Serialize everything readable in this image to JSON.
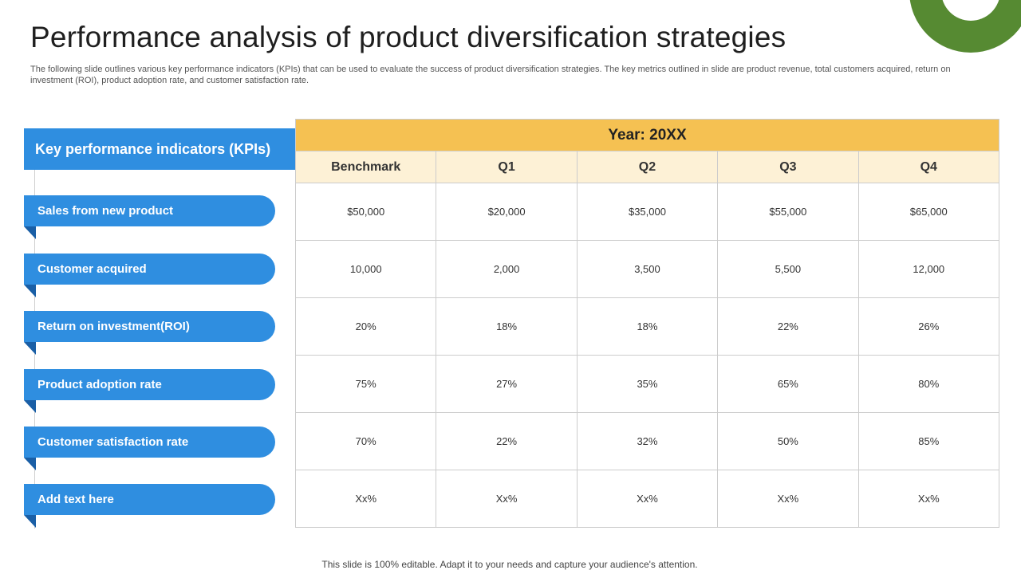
{
  "title": "Performance analysis of product diversification strategies",
  "subtitle": "The following slide outlines various key performance indicators (KPIs) that can be used to evaluate the success of product diversification strategies. The key metrics outlined in slide are product revenue, total customers acquired, return on investment (ROI), product adoption rate, and customer satisfaction rate.",
  "kpi_header": "Key performance indicators (KPIs)",
  "kpis": [
    "Sales from new product",
    "Customer acquired",
    "Return on investment(ROI)",
    "Product adoption rate",
    "Customer satisfaction rate",
    "Add text here"
  ],
  "table": {
    "year_label": "Year: 20XX",
    "columns": [
      "Benchmark",
      "Q1",
      "Q2",
      "Q3",
      "Q4"
    ],
    "rows": [
      [
        "$50,000",
        "$20,000",
        "$35,000",
        "$55,000",
        "$65,000"
      ],
      [
        "10,000",
        "2,000",
        "3,500",
        "5,500",
        "12,000"
      ],
      [
        "20%",
        "18%",
        "18%",
        "22%",
        "26%"
      ],
      [
        "75%",
        "27%",
        "35%",
        "65%",
        "80%"
      ],
      [
        "70%",
        "22%",
        "32%",
        "50%",
        "85%"
      ],
      [
        "Xx%",
        "Xx%",
        "Xx%",
        "Xx%",
        "Xx%"
      ]
    ]
  },
  "footer": "This slide is 100% editable. Adapt it to your needs and capture your audience's attention.",
  "colors": {
    "accent_blue": "#2f8ee0",
    "fold_blue": "#1a5fa6",
    "year_header": "#f5c152",
    "column_header": "#fdf1d6",
    "deco_green": "#568a32"
  }
}
